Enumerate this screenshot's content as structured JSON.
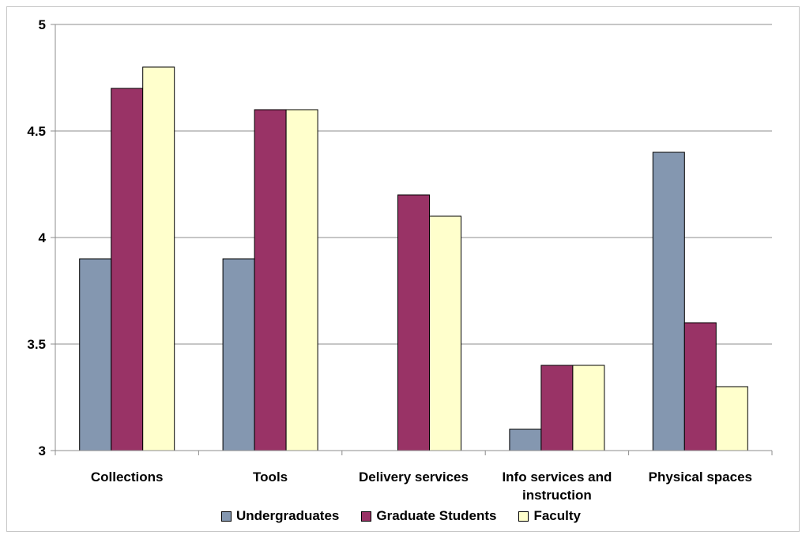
{
  "chart_data": {
    "type": "bar",
    "categories": [
      "Collections",
      "Tools",
      "Delivery services",
      "Info services and instruction",
      "Physical spaces"
    ],
    "category_lines": [
      [
        "Collections"
      ],
      [
        "Tools"
      ],
      [
        "Delivery services"
      ],
      [
        "Info services and",
        "instruction"
      ],
      [
        "Physical spaces"
      ]
    ],
    "series": [
      {
        "name": "Undergraduates",
        "values": [
          3.9,
          3.9,
          null,
          3.1,
          4.4
        ],
        "color": "#8497b0"
      },
      {
        "name": "Graduate Students",
        "values": [
          4.7,
          4.6,
          4.2,
          3.4,
          3.6
        ],
        "color": "#993366"
      },
      {
        "name": "Faculty",
        "values": [
          4.8,
          4.6,
          4.1,
          3.4,
          3.3
        ],
        "color": "#ffffcc"
      }
    ],
    "ylim": [
      3,
      5
    ],
    "yticks": [
      "3",
      "3.5",
      "4",
      "4.5",
      "5"
    ],
    "grid": true,
    "legend": "bottom",
    "title": "",
    "xlabel": "",
    "ylabel": ""
  }
}
